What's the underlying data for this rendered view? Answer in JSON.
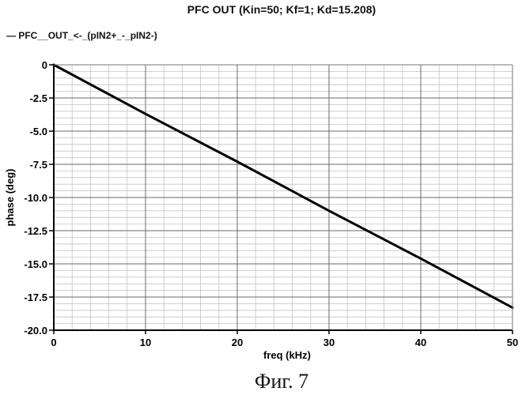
{
  "chart_data": {
    "type": "line",
    "title": "PFC OUT (Kin=50; Kf=1; Kd=15.208)",
    "xlabel": "freq (kHz)",
    "ylabel": "phase (deg)",
    "xlim": [
      0,
      50
    ],
    "ylim": [
      -20,
      0
    ],
    "x_ticks": [
      0,
      10,
      20,
      30,
      40,
      50
    ],
    "y_ticks": [
      0,
      -2.5,
      -5.0,
      -7.5,
      -10.0,
      -12.5,
      -15.0,
      -17.5,
      -20.0
    ],
    "x_tick_labels": [
      "0",
      "10",
      "20",
      "30",
      "40",
      "50"
    ],
    "y_tick_labels": [
      "0",
      "-2.5",
      "-5.0",
      "-7.5",
      "-10.0",
      "-12.5",
      "-15.0",
      "-17.5",
      "-20.0"
    ],
    "x_minor_step": 2,
    "y_minor_step": 0.5,
    "grid": true,
    "legend_position": "top-left",
    "series": [
      {
        "name": "PFC__OUT_<-_(pIN2+_-_pIN2-)",
        "color": "#000000",
        "x": [
          0,
          10,
          20,
          30,
          40,
          50
        ],
        "y": [
          0,
          -3.7,
          -7.3,
          -11.0,
          -14.6,
          -18.3
        ]
      }
    ]
  },
  "caption": "Фиг. 7"
}
